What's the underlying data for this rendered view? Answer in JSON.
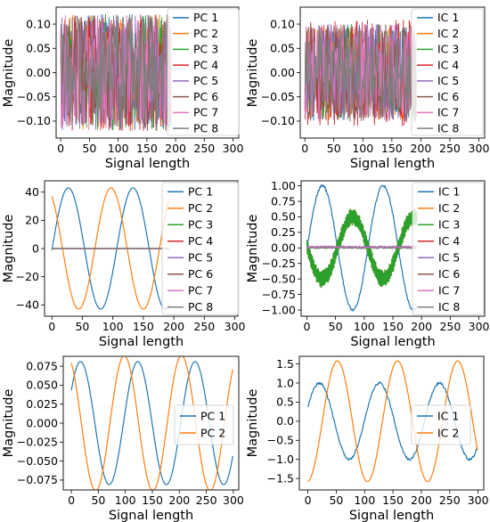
{
  "figure": {
    "panel_count": 6
  },
  "colors": {
    "C1": "#1f77b4",
    "C2": "#ff7f0e",
    "C3": "#2ca02c",
    "C4": "#d62728",
    "C5": "#9467bd",
    "C6": "#8c564b",
    "C7": "#e377c2",
    "C8": "#7f7f7f"
  },
  "chart_data": [
    {
      "type": "line",
      "title": "",
      "xlabel": "Signal length",
      "ylabel": "Magnitude",
      "xlim": [
        -8,
        310
      ],
      "ylim": [
        -0.135,
        0.135
      ],
      "xticks": [
        0,
        50,
        100,
        150,
        200,
        250,
        300
      ],
      "yticks": [
        -0.1,
        -0.05,
        0.0,
        0.05,
        0.1
      ],
      "ytick_labels": [
        "−0.10",
        "−0.05",
        "0.00",
        "0.05",
        "0.10"
      ],
      "legend": "upper right, overlapping plot",
      "grid": false,
      "series": [
        {
          "name": "PC 1",
          "color": "#1f77b4",
          "pattern": "noise",
          "x_max": 192,
          "amplitude": 0.12,
          "seed": 11
        },
        {
          "name": "PC 2",
          "color": "#ff7f0e",
          "pattern": "noise",
          "x_max": 192,
          "amplitude": 0.12,
          "seed": 12
        },
        {
          "name": "PC 3",
          "color": "#2ca02c",
          "pattern": "noise",
          "x_max": 192,
          "amplitude": 0.12,
          "seed": 13
        },
        {
          "name": "PC 4",
          "color": "#d62728",
          "pattern": "noise",
          "x_max": 192,
          "amplitude": 0.12,
          "seed": 14
        },
        {
          "name": "PC 5",
          "color": "#9467bd",
          "pattern": "noise",
          "x_max": 192,
          "amplitude": 0.12,
          "seed": 15
        },
        {
          "name": "PC 6",
          "color": "#8c564b",
          "pattern": "noise",
          "x_max": 192,
          "amplitude": 0.12,
          "seed": 16
        },
        {
          "name": "PC 7",
          "color": "#e377c2",
          "pattern": "noise",
          "x_max": 192,
          "amplitude": 0.12,
          "seed": 17
        },
        {
          "name": "PC 8",
          "color": "#7f7f7f",
          "pattern": "noise",
          "x_max": 192,
          "amplitude": 0.12,
          "seed": 18
        }
      ]
    },
    {
      "type": "line",
      "title": "",
      "xlabel": "Signal length",
      "ylabel": "Magnitude",
      "xlim": [
        -8,
        310
      ],
      "ylim": [
        -0.135,
        0.135
      ],
      "xticks": [
        0,
        50,
        100,
        150,
        200,
        250,
        300
      ],
      "yticks": [
        -0.1,
        -0.05,
        0.0,
        0.05,
        0.1
      ],
      "ytick_labels": [
        "−0.10",
        "−0.05",
        "0.00",
        "0.05",
        "0.10"
      ],
      "legend": "upper right, overlapping plot",
      "grid": false,
      "series": [
        {
          "name": "IC 1",
          "color": "#1f77b4",
          "pattern": "noise",
          "x_max": 192,
          "amplitude": 0.1,
          "seed": 21
        },
        {
          "name": "IC 2",
          "color": "#ff7f0e",
          "pattern": "noise",
          "x_max": 192,
          "amplitude": 0.1,
          "seed": 22
        },
        {
          "name": "IC 3",
          "color": "#2ca02c",
          "pattern": "noise",
          "x_max": 192,
          "amplitude": 0.1,
          "seed": 23
        },
        {
          "name": "IC 4",
          "color": "#d62728",
          "pattern": "noise",
          "x_max": 192,
          "amplitude": 0.11,
          "seed": 24
        },
        {
          "name": "IC 5",
          "color": "#9467bd",
          "pattern": "noise",
          "x_max": 192,
          "amplitude": 0.1,
          "seed": 25
        },
        {
          "name": "IC 6",
          "color": "#8c564b",
          "pattern": "noise",
          "x_max": 192,
          "amplitude": 0.1,
          "seed": 26
        },
        {
          "name": "IC 7",
          "color": "#e377c2",
          "pattern": "noise",
          "x_max": 192,
          "amplitude": 0.1,
          "seed": 27
        },
        {
          "name": "IC 8",
          "color": "#7f7f7f",
          "pattern": "noise",
          "x_max": 192,
          "amplitude": 0.1,
          "seed": 28
        }
      ]
    },
    {
      "type": "line",
      "title": "",
      "xlabel": "Signal length",
      "ylabel": "Magnitude",
      "xlim": [
        -12,
        305
      ],
      "ylim": [
        -48,
        48
      ],
      "xticks": [
        0,
        50,
        100,
        150,
        200,
        250,
        300
      ],
      "yticks": [
        -40,
        -20,
        0,
        20,
        40
      ],
      "ytick_labels": [
        "−40",
        "−20",
        "0",
        "20",
        "40"
      ],
      "legend": "upper right, overlapping plot",
      "grid": false,
      "series": [
        {
          "name": "PC 1",
          "color": "#1f77b4",
          "pattern": "sine",
          "x_max": 192,
          "amplitude": 43,
          "period": 106,
          "peak_x": 27
        },
        {
          "name": "PC 2",
          "color": "#ff7f0e",
          "pattern": "sine",
          "x_max": 192,
          "amplitude": 43,
          "period": 106,
          "peak_x": 97
        },
        {
          "name": "PC 3",
          "color": "#2ca02c",
          "pattern": "flat",
          "x_max": 192,
          "value": 0
        },
        {
          "name": "PC 4",
          "color": "#d62728",
          "pattern": "flat",
          "x_max": 192,
          "value": 0
        },
        {
          "name": "PC 5",
          "color": "#9467bd",
          "pattern": "flat",
          "x_max": 192,
          "value": 0
        },
        {
          "name": "PC 6",
          "color": "#8c564b",
          "pattern": "flat",
          "x_max": 192,
          "value": 0
        },
        {
          "name": "PC 7",
          "color": "#e377c2",
          "pattern": "flat",
          "x_max": 192,
          "value": 0
        },
        {
          "name": "PC 8",
          "color": "#7f7f7f",
          "pattern": "flat",
          "x_max": 192,
          "value": 0
        }
      ]
    },
    {
      "type": "line",
      "title": "",
      "xlabel": "Signal length",
      "ylabel": "Magnitude",
      "xlim": [
        -10,
        310
      ],
      "ylim": [
        -1.1,
        1.08
      ],
      "xticks": [
        0,
        50,
        100,
        150,
        200,
        250,
        300
      ],
      "yticks": [
        -1.0,
        -0.75,
        -0.5,
        -0.25,
        0.0,
        0.25,
        0.5,
        0.75,
        1.0
      ],
      "ytick_labels": [
        "−1.00",
        "−0.75",
        "−0.50",
        "−0.25",
        "0.00",
        "0.25",
        "0.50",
        "0.75",
        "1.00"
      ],
      "legend": "upper right, overlapping plot",
      "grid": false,
      "series": [
        {
          "name": "IC 1",
          "color": "#1f77b4",
          "pattern": "sine",
          "x_max": 192,
          "amplitude": 1.0,
          "period": 106,
          "peak_x": 27,
          "jitter": 0.02
        },
        {
          "name": "IC 2",
          "color": "#ff7f0e",
          "pattern": "zigzag",
          "x_max": 192,
          "amplitude": 0.5,
          "period": 106,
          "peak_x": 80,
          "zig": 0.14
        },
        {
          "name": "IC 3",
          "color": "#2ca02c",
          "pattern": "zigzag",
          "x_max": 192,
          "amplitude": 0.5,
          "period": 106,
          "peak_x": 80,
          "zig": 0.14
        },
        {
          "name": "IC 4",
          "color": "#d62728",
          "pattern": "flat",
          "x_max": 192,
          "value": 0.01,
          "jitter": 0.01
        },
        {
          "name": "IC 5",
          "color": "#9467bd",
          "pattern": "flat",
          "x_max": 192,
          "value": 0.02,
          "jitter": 0.01
        },
        {
          "name": "IC 6",
          "color": "#8c564b",
          "pattern": "flat",
          "x_max": 192,
          "value": 0.0,
          "jitter": 0.01
        },
        {
          "name": "IC 7",
          "color": "#e377c2",
          "pattern": "flat",
          "x_max": 192,
          "value": 0.01,
          "jitter": 0.01
        },
        {
          "name": "IC 8",
          "color": "#7f7f7f",
          "pattern": "flat",
          "x_max": 192,
          "value": 0.0,
          "jitter": 0.01
        }
      ]
    },
    {
      "type": "line",
      "title": "",
      "xlabel": "Signal length",
      "ylabel": "Magnitude",
      "xlim": [
        -15,
        310
      ],
      "ylim": [
        -0.088,
        0.088
      ],
      "xticks": [
        0,
        50,
        100,
        150,
        200,
        250,
        300
      ],
      "yticks": [
        -0.075,
        -0.05,
        -0.025,
        0.0,
        0.025,
        0.05,
        0.075
      ],
      "ytick_labels": [
        "−0.075",
        "−0.050",
        "−0.025",
        "0.000",
        "0.025",
        "0.050",
        "0.075"
      ],
      "legend": "center right",
      "grid": false,
      "series": [
        {
          "name": "PC 1",
          "color": "#1f77b4",
          "pattern": "sine",
          "x_max": 299,
          "amplitude": 0.081,
          "period": 106,
          "peak_x": 17
        },
        {
          "name": "PC 2",
          "color": "#ff7f0e",
          "pattern": "sine",
          "x_max": 299,
          "amplitude": 0.089,
          "period": 106,
          "peak_x": 98
        }
      ]
    },
    {
      "type": "line",
      "title": "",
      "xlabel": "Signal length",
      "ylabel": "Magnitude",
      "xlim": [
        -15,
        310
      ],
      "ylim": [
        -1.8,
        1.7
      ],
      "xticks": [
        0,
        50,
        100,
        150,
        200,
        250,
        300
      ],
      "yticks": [
        -1.5,
        -1.0,
        -0.5,
        0.0,
        0.5,
        1.0,
        1.5
      ],
      "ytick_labels": [
        "−1.5",
        "−1.0",
        "−0.5",
        "0.0",
        "0.5",
        "1.0",
        "1.5"
      ],
      "legend": "center right",
      "grid": false,
      "series": [
        {
          "name": "IC 1",
          "color": "#1f77b4",
          "pattern": "sine",
          "x_max": 299,
          "amplitude": 1.0,
          "period": 106,
          "peak_x": 20,
          "jitter": 0.03
        },
        {
          "name": "IC 2",
          "color": "#ff7f0e",
          "pattern": "sine",
          "x_max": 299,
          "amplitude": 1.58,
          "period": 106,
          "peak_x": 52
        }
      ]
    }
  ]
}
